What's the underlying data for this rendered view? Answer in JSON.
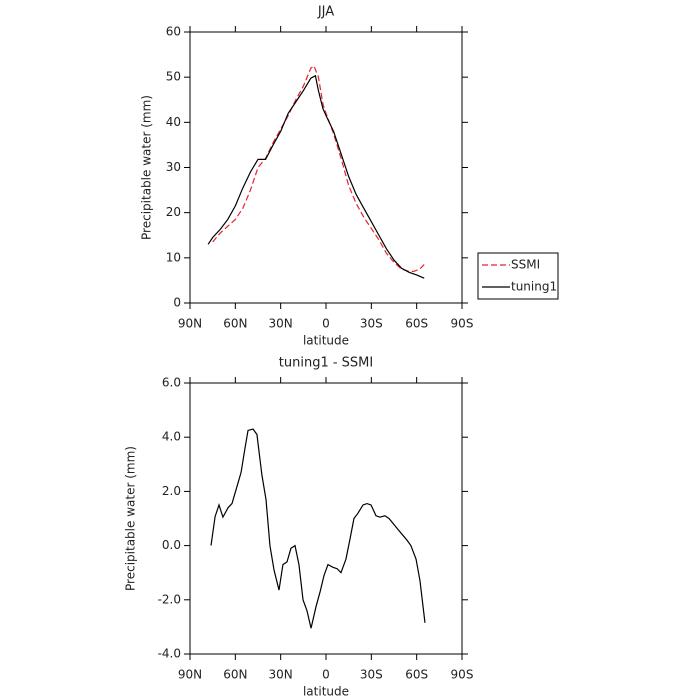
{
  "chart_data": [
    {
      "type": "line",
      "title": "JJA",
      "x_label": "latitude",
      "y_label": "Precipitable water (mm)",
      "xlim": [
        90,
        -90
      ],
      "xticks": [
        {
          "value": 90,
          "label": "90N"
        },
        {
          "value": 60,
          "label": "60N"
        },
        {
          "value": 30,
          "label": "30N"
        },
        0,
        {
          "value": -30,
          "label": "30S"
        },
        {
          "value": -60,
          "label": "60S"
        },
        {
          "value": -90,
          "label": "90S"
        }
      ],
      "ylim": [
        0,
        60
      ],
      "yticks": [
        0,
        10,
        20,
        30,
        40,
        50,
        60
      ],
      "legend": "outside-right",
      "series": [
        {
          "name": "SSMI",
          "color": "#e8202a",
          "dashed": true,
          "x": [
            75,
            70,
            65,
            60,
            55,
            50,
            45,
            40,
            35,
            30,
            25,
            20,
            15,
            10,
            8,
            5,
            2,
            0,
            -5,
            -10,
            -15,
            -20,
            -25,
            -30,
            -35,
            -40,
            -45,
            -50,
            -55,
            -58,
            -62,
            -65
          ],
          "values": [
            13.5,
            15.5,
            17,
            18.5,
            21,
            25,
            30,
            32,
            35.5,
            38.5,
            41.5,
            45,
            48,
            52,
            52.5,
            50,
            44,
            42,
            37.5,
            32,
            26,
            22,
            19,
            16.5,
            14,
            11,
            9,
            7.5,
            7,
            7,
            7.5,
            8.5
          ]
        },
        {
          "name": "tuning1",
          "color": "#000000",
          "dashed": false,
          "x": [
            78,
            75,
            70,
            65,
            60,
            55,
            50,
            45,
            40,
            35,
            30,
            25,
            20,
            15,
            10,
            7,
            5,
            2,
            0,
            -5,
            -10,
            -15,
            -20,
            -25,
            -30,
            -35,
            -40,
            -45,
            -50,
            -55,
            -60,
            -65
          ],
          "values": [
            13,
            14.5,
            16.3,
            18.5,
            21.5,
            25.5,
            29,
            31.8,
            31.8,
            35,
            38,
            42,
            44.5,
            47,
            49.8,
            50.3,
            47,
            43,
            41.5,
            38,
            33,
            28,
            24,
            21,
            18,
            15,
            12,
            9.5,
            7.7,
            6.8,
            6.2,
            5.5
          ]
        }
      ]
    },
    {
      "type": "line",
      "title": "tuning1 - SSMI",
      "x_label": "latitude",
      "y_label": "Precipitable water (mm)",
      "xlim": [
        90,
        -90
      ],
      "xticks": [
        {
          "value": 90,
          "label": "90N"
        },
        {
          "value": 60,
          "label": "60N"
        },
        {
          "value": 30,
          "label": "30N"
        },
        0,
        {
          "value": -30,
          "label": "30S"
        },
        {
          "value": -60,
          "label": "60S"
        },
        {
          "value": -90,
          "label": "90S"
        }
      ],
      "ylim": [
        -4,
        6
      ],
      "yticks": [
        {
          "value": -4,
          "label": "-4.0"
        },
        {
          "value": -2,
          "label": "-2.0"
        },
        {
          "value": 0,
          "label": "0.0"
        },
        {
          "value": 2,
          "label": "2.0"
        },
        {
          "value": 4,
          "label": "4.0"
        },
        {
          "value": 6,
          "label": "6.0"
        }
      ],
      "series": [
        {
          "color": "#000000",
          "dashed": false,
          "x": [
            76.1,
            73.4,
            70.8,
            68.2,
            64.8,
            62.2,
            59.6,
            56.2,
            53.6,
            51.6,
            48.3,
            45.7,
            42.4,
            39.7,
            37.1,
            34.4,
            31.1,
            28.5,
            25.8,
            23.2,
            20.5,
            17.9,
            15.2,
            12.6,
            9.9,
            6.6,
            3.9,
            1.3,
            -1.3,
            -4.6,
            -7.3,
            -9.9,
            -13.2,
            -15.9,
            -18.5,
            -21.2,
            -24.5,
            -27.1,
            -29.8,
            -33.1,
            -35.7,
            -39,
            -41.7,
            -47.6,
            -53.6,
            -56.2,
            -59.6,
            -62.2,
            -65.5
          ],
          "values": [
            0,
            1.07,
            1.5,
            1.05,
            1.4,
            1.55,
            2.05,
            2.7,
            3.6,
            4.25,
            4.3,
            4.1,
            2.6,
            1.7,
            0,
            -0.9,
            -1.64,
            -0.7,
            -0.6,
            -0.1,
            0,
            -0.7,
            -2,
            -2.4,
            -3.05,
            -2.25,
            -1.7,
            -1.1,
            -0.7,
            -0.8,
            -0.85,
            -1,
            -0.5,
            0.25,
            1,
            1.2,
            1.5,
            1.55,
            1.5,
            1.1,
            1.05,
            1.1,
            1,
            0.6,
            0.2,
            0,
            -0.5,
            -1.3,
            -2.85
          ]
        }
      ]
    }
  ]
}
